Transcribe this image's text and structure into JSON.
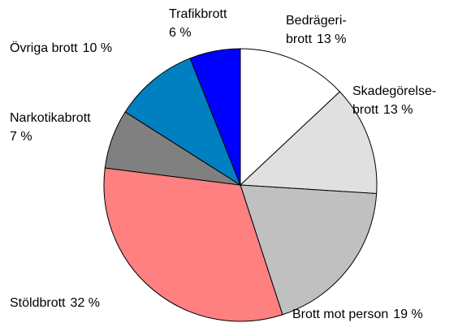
{
  "chart_data": {
    "type": "pie",
    "categories": [
      [
        "Bedrägeri-",
        "brott"
      ],
      [
        "Skadegörelse-",
        "brott"
      ],
      [
        "Brott mot person"
      ],
      [
        "Stöldbrott"
      ],
      [
        "Narkotikabrott"
      ],
      [
        "Övriga brott"
      ],
      [
        "Trafikbrott"
      ]
    ],
    "values": [
      13,
      13,
      19,
      32,
      7,
      10,
      6
    ],
    "value_labels": [
      "13 %",
      "13 %",
      "19 %",
      "32 %",
      "7 %",
      "10 %",
      "6 %"
    ],
    "colors": [
      "#ffffff",
      "#e0e0e0",
      "#c0c0c0",
      "#ff8080",
      "#808080",
      "#0080c0",
      "#0000ff"
    ]
  }
}
